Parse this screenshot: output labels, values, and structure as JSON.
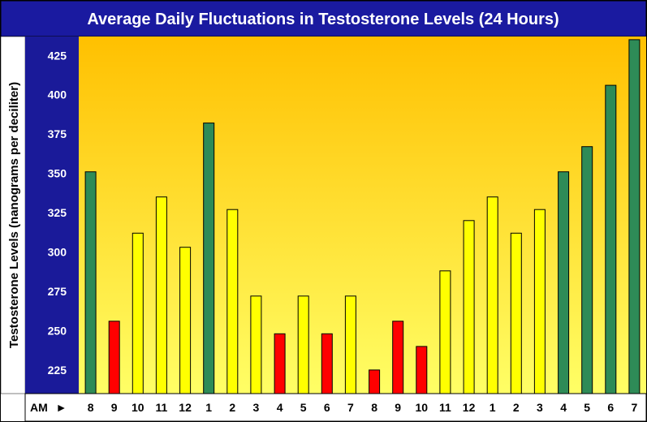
{
  "chart_data": {
    "type": "bar",
    "title": "Average Daily Fluctuations in Testosterone Levels (24 Hours)",
    "ylabel": "Testosterone Levels (nanograms per deciliter)",
    "xlabel": "",
    "x_prefix": "AM",
    "x_prefix_marker": "►",
    "ylim": [
      210,
      437
    ],
    "yticks": [
      225,
      250,
      275,
      300,
      325,
      350,
      375,
      400,
      425
    ],
    "grid": false,
    "categories": [
      "8",
      "9",
      "10",
      "11",
      "12",
      "1",
      "2",
      "3",
      "4",
      "5",
      "6",
      "7",
      "8",
      "9",
      "10",
      "11",
      "12",
      "1",
      "2",
      "3",
      "4",
      "5",
      "6",
      "7"
    ],
    "values": [
      351,
      256,
      312,
      335,
      303,
      382,
      327,
      272,
      248,
      272,
      248,
      272,
      225,
      256,
      240,
      288,
      320,
      335,
      312,
      327,
      351,
      367,
      406,
      435
    ],
    "bar_colors": [
      "green",
      "red",
      "yellow",
      "yellow",
      "yellow",
      "green",
      "yellow",
      "yellow",
      "red",
      "yellow",
      "red",
      "yellow",
      "red",
      "red",
      "red",
      "yellow",
      "yellow",
      "yellow",
      "yellow",
      "yellow",
      "green",
      "green",
      "green",
      "green"
    ],
    "colors": {
      "green": "#2e8b57",
      "red": "#ff0000",
      "yellow": "#ffff00",
      "title_bg": "#1a1aa0",
      "axis_bg": "#1a1a99",
      "plot_top": "#ffc000",
      "plot_bottom": "#ffff66"
    }
  }
}
